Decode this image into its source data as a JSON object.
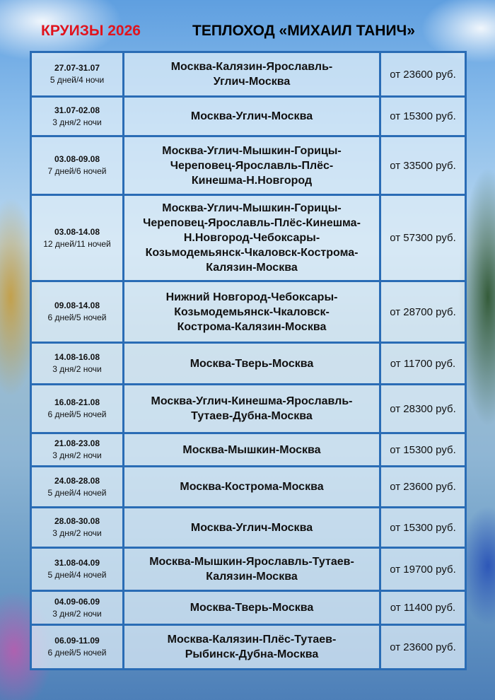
{
  "header": {
    "title_left": "КРУИЗЫ 2026",
    "title_right": "ТЕПЛОХОД «МИХАИЛ ТАНИЧ»"
  },
  "colors": {
    "accent_red": "#e0141e",
    "table_border": "#2a6cb5"
  },
  "cruises": [
    {
      "dates": "27.07-31.07",
      "duration": "5 дней/4 ночи",
      "route": "Москва-Калязин-Ярославль-\nУглич-Москва",
      "price": "от 23600 руб."
    },
    {
      "dates": "31.07-02.08",
      "duration": "3 дня/2 ночи",
      "route": "Москва-Углич-Москва",
      "price": "от 15300 руб."
    },
    {
      "dates": "03.08-09.08",
      "duration": "7 дней/6 ночей",
      "route": "Москва-Углич-Мышкин-Горицы-\nЧереповец-Ярославль-Плёс-\nКинешма-Н.Новгород",
      "price": "от 33500 руб."
    },
    {
      "dates": "03.08-14.08",
      "duration": "12 дней/11 ночей",
      "route": "Москва-Углич-Мышкин-Горицы-\nЧереповец-Ярославль-Плёс-Кинешма-\nН.Новгород-Чебоксары-\nКозьмодемьянск-Чкаловск-Кострома-\nКалязин-Москва",
      "price": "от 57300 руб."
    },
    {
      "dates": "09.08-14.08",
      "duration": "6 дней/5 ночей",
      "route": "Нижний Новгород-Чебоксары-\nКозьмодемьянск-Чкаловск-\nКострома-Калязин-Москва",
      "price": "от 28700 руб."
    },
    {
      "dates": "14.08-16.08",
      "duration": "3 дня/2 ночи",
      "route": "Москва-Тверь-Москва",
      "price": "от 11700 руб."
    },
    {
      "dates": "16.08-21.08",
      "duration": "6 дней/5 ночей",
      "route": "Москва-Углич-Кинешма-Ярославль-\nТутаев-Дубна-Москва",
      "price": "от 28300 руб."
    },
    {
      "dates": "21.08-23.08",
      "duration": "3 дня/2 ночи",
      "route": "Москва-Мышкин-Москва",
      "price": "от 15300 руб."
    },
    {
      "dates": "24.08-28.08",
      "duration": "5 дней/4 ночей",
      "route": "Москва-Кострома-Москва",
      "price": "от 23600 руб."
    },
    {
      "dates": "28.08-30.08",
      "duration": "3 дня/2 ночи",
      "route": "Москва-Углич-Москва",
      "price": "от 15300 руб."
    },
    {
      "dates": "31.08-04.09",
      "duration": "5 дней/4 ночей",
      "route": "Москва-Мышкин-Ярославль-Тутаев-\nКалязин-Москва",
      "price": "от 19700 руб."
    },
    {
      "dates": "04.09-06.09",
      "duration": "3 дня/2 ночи",
      "route": "Москва-Тверь-Москва",
      "price": "от 11400 руб."
    },
    {
      "dates": "06.09-11.09",
      "duration": "6 дней/5 ночей",
      "route": "Москва-Калязин-Плёс-Тутаев-\nРыбинск-Дубна-Москва",
      "price": "от 23600 руб."
    }
  ]
}
